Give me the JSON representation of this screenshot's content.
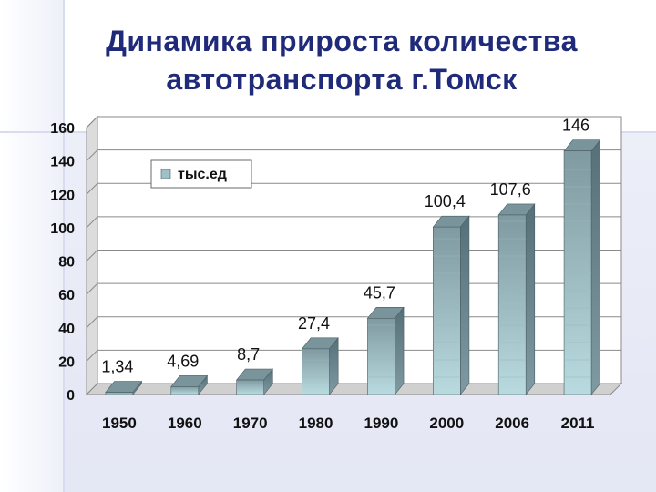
{
  "title": "Динамика прироста количества автотранспорта г.Томск",
  "chart_data": {
    "type": "bar",
    "title": "Динамика прироста количества автотранспорта г.Томск",
    "categories": [
      "1950",
      "1960",
      "1970",
      "1980",
      "1990",
      "2000",
      "2006",
      "2011"
    ],
    "series": [
      {
        "name": "тыс.ед",
        "values": [
          1.34,
          4.69,
          8.7,
          27.4,
          45.7,
          100.4,
          107.6,
          146
        ]
      }
    ],
    "data_labels": [
      "1,34",
      "4,69",
      "8,7",
      "27,4",
      "45,7",
      "100,4",
      "107,6",
      "146"
    ],
    "y_ticks": [
      "0",
      "20",
      "40",
      "60",
      "80",
      "100",
      "120",
      "140",
      "160"
    ],
    "ylim": [
      0,
      160
    ],
    "grid": true,
    "legend_position": "top-left",
    "xlabel": "",
    "ylabel": "",
    "colors": {
      "bar_front": "#9fc0c6",
      "bar_side": "#5e7880",
      "bar_top": "#7a949b",
      "title": "#1f2a78"
    }
  }
}
